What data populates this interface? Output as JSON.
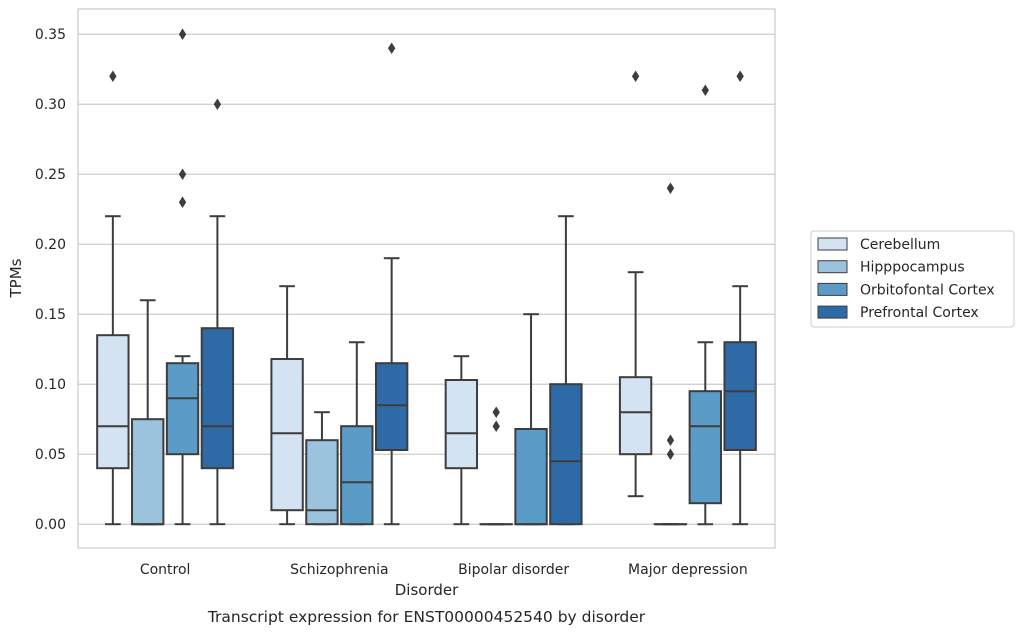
{
  "chart_data": {
    "type": "boxplot",
    "title": "",
    "caption": "Transcript expression for ENST00000452540 by disorder",
    "xlabel": "Disorder",
    "ylabel": "TPMs",
    "ylim": [
      -0.017,
      0.368
    ],
    "yticks": [
      "0.00",
      "0.05",
      "0.10",
      "0.15",
      "0.20",
      "0.25",
      "0.30",
      "0.35"
    ],
    "grid": "horizontal",
    "legend_position": "right",
    "categories": [
      "Control",
      "Schizophrenia",
      "Bipolar disorder",
      "Major depression"
    ],
    "series": [
      {
        "name": "Cerebellum",
        "color": "#d4e3f2",
        "boxes": [
          {
            "whisker_low": 0.0,
            "q1": 0.04,
            "median": 0.07,
            "q3": 0.135,
            "whisker_high": 0.22,
            "outliers": [
              0.32
            ]
          },
          {
            "whisker_low": 0.0,
            "q1": 0.01,
            "median": 0.065,
            "q3": 0.118,
            "whisker_high": 0.17,
            "outliers": []
          },
          {
            "whisker_low": 0.0,
            "q1": 0.04,
            "median": 0.065,
            "q3": 0.103,
            "whisker_high": 0.12,
            "outliers": []
          },
          {
            "whisker_low": 0.02,
            "q1": 0.05,
            "median": 0.08,
            "q3": 0.105,
            "whisker_high": 0.18,
            "outliers": [
              0.32
            ]
          }
        ]
      },
      {
        "name": "Hipppocampus",
        "color": "#9cc3de",
        "boxes": [
          {
            "whisker_low": 0.0,
            "q1": 0.0,
            "median": 0.0,
            "q3": 0.075,
            "whisker_high": 0.16,
            "outliers": []
          },
          {
            "whisker_low": 0.0,
            "q1": 0.0,
            "median": 0.01,
            "q3": 0.06,
            "whisker_high": 0.08,
            "outliers": []
          },
          {
            "whisker_low": 0.0,
            "q1": 0.0,
            "median": 0.0,
            "q3": 0.0,
            "whisker_high": 0.0,
            "outliers": [
              0.07,
              0.08
            ]
          },
          {
            "whisker_low": 0.0,
            "q1": 0.0,
            "median": 0.0,
            "q3": 0.0,
            "whisker_high": 0.0,
            "outliers": [
              0.05,
              0.06,
              0.24
            ]
          }
        ]
      },
      {
        "name": "Orbitofontal Cortex",
        "color": "#5b9bc8",
        "boxes": [
          {
            "whisker_low": 0.0,
            "q1": 0.05,
            "median": 0.09,
            "q3": 0.115,
            "whisker_high": 0.12,
            "outliers": [
              0.23,
              0.25,
              0.35
            ]
          },
          {
            "whisker_low": 0.0,
            "q1": 0.0,
            "median": 0.03,
            "q3": 0.07,
            "whisker_high": 0.13,
            "outliers": []
          },
          {
            "whisker_low": 0.0,
            "q1": 0.0,
            "median": 0.0,
            "q3": 0.068,
            "whisker_high": 0.15,
            "outliers": []
          },
          {
            "whisker_low": 0.0,
            "q1": 0.015,
            "median": 0.07,
            "q3": 0.095,
            "whisker_high": 0.13,
            "outliers": [
              0.31
            ]
          }
        ]
      },
      {
        "name": "Prefrontal Cortex",
        "color": "#2e6aa6",
        "boxes": [
          {
            "whisker_low": 0.0,
            "q1": 0.04,
            "median": 0.07,
            "q3": 0.14,
            "whisker_high": 0.22,
            "outliers": [
              0.3
            ]
          },
          {
            "whisker_low": 0.0,
            "q1": 0.053,
            "median": 0.085,
            "q3": 0.115,
            "whisker_high": 0.19,
            "outliers": [
              0.34
            ]
          },
          {
            "whisker_low": 0.0,
            "q1": 0.0,
            "median": 0.045,
            "q3": 0.1,
            "whisker_high": 0.22,
            "outliers": []
          },
          {
            "whisker_low": 0.0,
            "q1": 0.053,
            "median": 0.095,
            "q3": 0.13,
            "whisker_high": 0.17,
            "outliers": [
              0.32
            ]
          }
        ]
      }
    ]
  }
}
